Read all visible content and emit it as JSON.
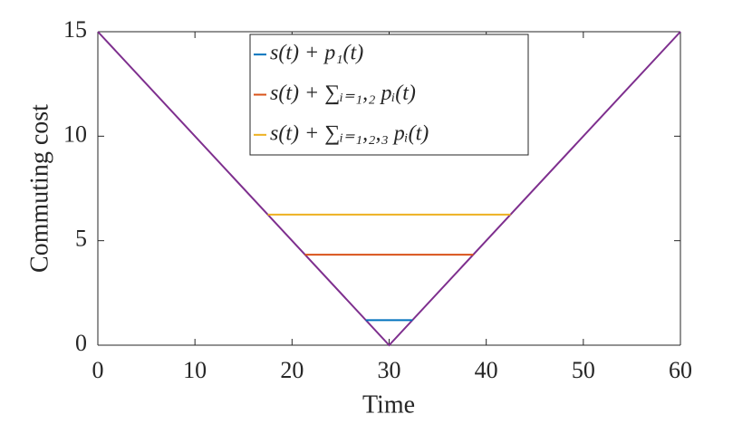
{
  "chart_data": {
    "type": "line",
    "xlabel": "Time",
    "ylabel": "Commuting cost",
    "xlim": [
      0,
      60
    ],
    "ylim": [
      0,
      15
    ],
    "xticks": [
      0,
      10,
      20,
      30,
      40,
      50,
      60
    ],
    "yticks": [
      0,
      5,
      10,
      15
    ],
    "box": true,
    "legend": "north",
    "series": [
      {
        "color": "#7E2F8E",
        "x": [
          0,
          30,
          60
        ],
        "values": [
          15,
          0,
          15
        ]
      },
      {
        "name": "s(t) + p₁(t)",
        "color": "#0072BD",
        "x": [
          27.6,
          32.4
        ],
        "values": [
          1.2,
          1.2
        ]
      },
      {
        "name": "s(t) + ∑ᵢ₌₁,₂ pᵢ(t)",
        "color": "#D95319",
        "x": [
          21.33,
          38.67
        ],
        "values": [
          4.33,
          4.33
        ]
      },
      {
        "name": "s(t) + ∑ᵢ₌₁,₂,₃ pᵢ(t)",
        "color": "#EDB120",
        "x": [
          17.5,
          42.5
        ],
        "values": [
          6.25,
          6.25
        ]
      }
    ]
  }
}
